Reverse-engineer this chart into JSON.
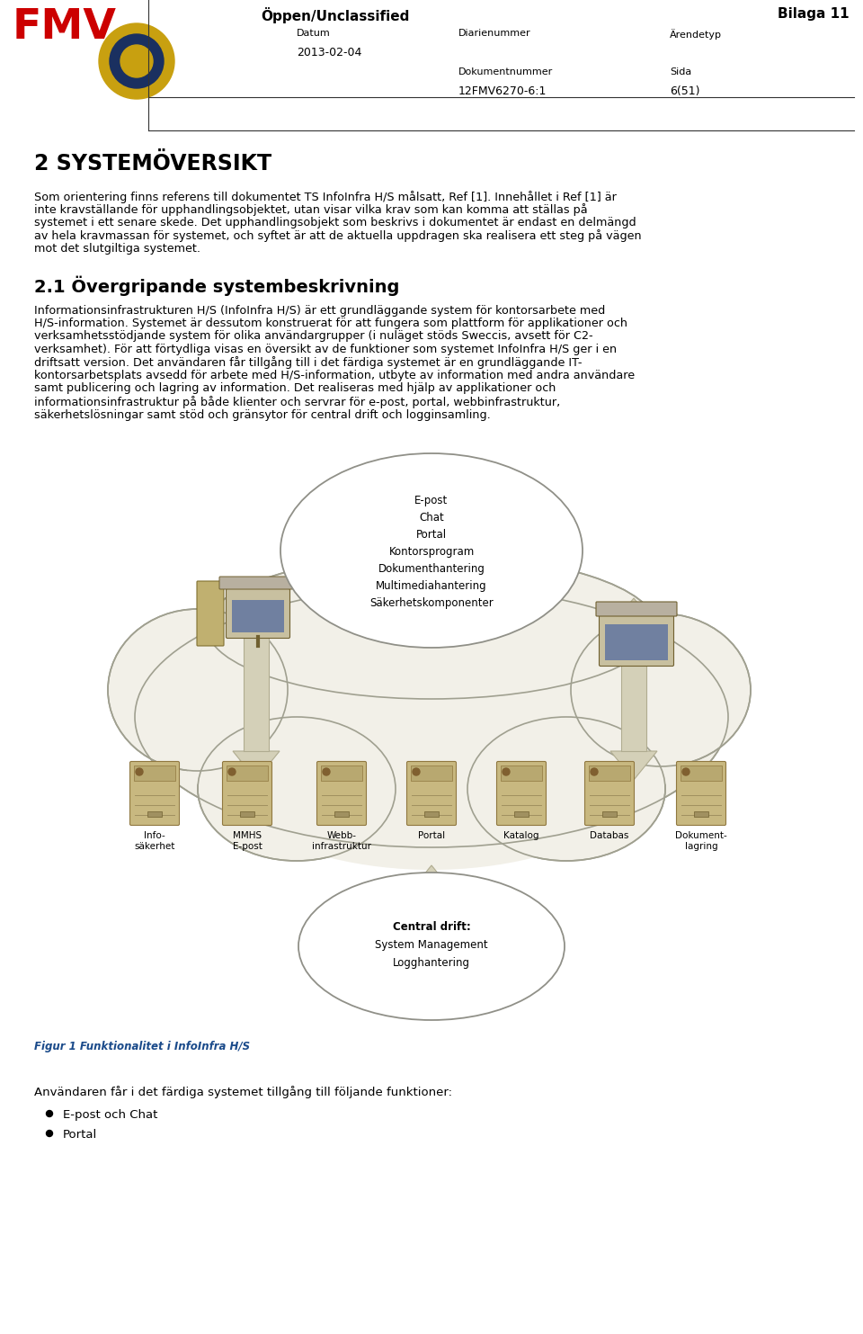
{
  "page_width": 9.6,
  "page_height": 14.83,
  "bg_color": "#ffffff",
  "header": {
    "classification": "Öppen/Unclassified",
    "bilaga": "Bilaga 11",
    "datum_label": "Datum",
    "datum_value": "2013-02-04",
    "diarienummer_label": "Diarienummer",
    "arendetyp_label": "Ärendetyp",
    "dokumentnummer_label": "Dokumentnummer",
    "sida_label": "Sida",
    "dokumentnummer_value": "12FMV6270-6:1",
    "sida_value": "6(51)"
  },
  "section_title": "2 SYSTEMÖVERSIKT",
  "body1_lines": [
    "Som orientering finns referens till dokumentet TS InfoInfra H/S målsatt, Ref [1]. Innehållet i Ref [1] är",
    "inte kravställande för upphandlingsobjektet, utan visar vilka krav som kan komma att ställas på",
    "systemet i ett senare skede. Det upphandlingsobjekt som beskrivs i dokumentet är endast en delmängd",
    "av hela kravmassan för systemet, och syftet är att de aktuella uppdragen ska realisera ett steg på vägen",
    "mot det slutgiltiga systemet."
  ],
  "section2_title": "2.1 Övergripande systembeskrivning",
  "body2_lines": [
    "Informationsinfrastrukturen H/S (InfoInfra H/S) är ett grundläggande system för kontorsarbete med",
    "H/S-information. Systemet är dessutom konstruerat för att fungera som plattform för applikationer och",
    "verksamhetsstödjande system för olika användargrupper (i nuläget stöds Sweccis, avsett för C2-",
    "verksamhet). För att förtydliga visas en översikt av de funktioner som systemet InfoInfra H/S ger i en",
    "driftsatt version. Det användaren får tillgång till i det färdiga systemet är en grundläggande IT-",
    "kontorsarbetsplats avsedd för arbete med H/S-information, utbyte av information med andra användare",
    "samt publicering och lagring av information. Det realiseras med hjälp av applikationer och",
    "informationsinfrastruktur på både klienter och servrar för e-post, portal, webbinfrastruktur,",
    "säkerhetslösningar samt stöd och gränsytor för central drift och logginsamling."
  ],
  "figure_caption": "Figur 1 Funktionalitet i InfoInfra H/S",
  "section3_intro": "Användaren får i det färdiga systemet tillgång till följande funktioner:",
  "bullet_points": [
    "E-post och Chat",
    "Portal"
  ],
  "cloud_top_items": [
    "E-post",
    "Chat",
    "Portal",
    "Kontorsprogram",
    "Dokumenthantering",
    "Multimediahantering",
    "Säkerhetskomponenter"
  ],
  "server_labels": [
    "Info-\nsäkerhet",
    "MMHS\nE-post",
    "Webb-\ninfrastruktur",
    "Portal",
    "Katalog",
    "Databas",
    "Dokument-\nlagring"
  ],
  "cloud_bottom_items": [
    "Central drift:",
    "System Management",
    "Logghantering"
  ],
  "arrow_color": "#d4d0b8",
  "arrow_edge": "#b0ac90",
  "cloud_fill": "#f2f0e8",
  "cloud_edge": "#a0a090",
  "oval_fill": "#ffffff",
  "oval_edge": "#909088"
}
